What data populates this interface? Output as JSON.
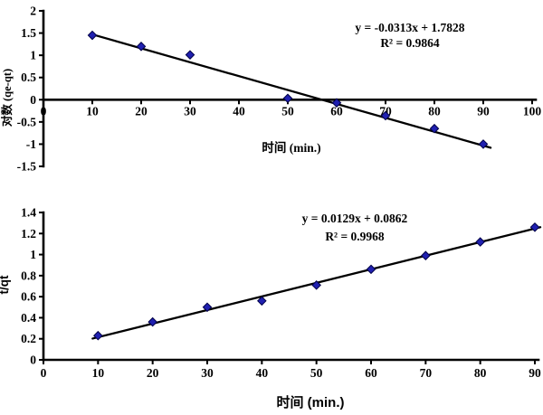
{
  "figure": {
    "background": "#ffffff",
    "description": "Adsorption kinetics linear regression plots"
  },
  "colors": {
    "marker_fill": "#2020b0",
    "marker_stroke": "#000046",
    "trendline": "#000000",
    "axis": "#000000",
    "text": "#000000"
  },
  "chart_data": [
    {
      "type": "scatter",
      "title": "",
      "xlabel": "时间 (min.)",
      "ylabel": "对数 (qe-qt)",
      "equation": "y = -0.0313x + 1.7828",
      "r_squared": "R² = 0.9864",
      "x": [
        10,
        20,
        30,
        50,
        60,
        70,
        80,
        90
      ],
      "y": [
        1.45,
        1.2,
        1.01,
        0.03,
        -0.07,
        -0.36,
        -0.65,
        -1.0
      ],
      "trendline": {
        "slope": -0.0313,
        "intercept": 1.7828,
        "x_start": 10,
        "x_end": 91.5
      },
      "xlim": [
        0,
        100
      ],
      "ylim": [
        -1.5,
        2
      ],
      "x_ticks": [
        0,
        10,
        20,
        30,
        40,
        50,
        60,
        70,
        80,
        90,
        100
      ],
      "y_ticks": [
        -1.5,
        -1,
        -0.5,
        0,
        0.5,
        1,
        1.5,
        2
      ],
      "grid": false,
      "legend": "none",
      "marker": "diamond"
    },
    {
      "type": "scatter",
      "title": "",
      "xlabel": "时间 (min.)",
      "ylabel": "t/qt",
      "equation": "y = 0.0129x + 0.0862",
      "r_squared": "R² = 0.9968",
      "x": [
        10,
        20,
        30,
        40,
        50,
        60,
        70,
        80,
        90
      ],
      "y": [
        0.23,
        0.36,
        0.5,
        0.56,
        0.71,
        0.86,
        0.99,
        1.12,
        1.26
      ],
      "trendline": {
        "slope": 0.0129,
        "intercept": 0.0862,
        "x_start": 9,
        "x_end": 91
      },
      "xlim": [
        0,
        90
      ],
      "ylim": [
        0,
        1.4
      ],
      "x_ticks": [
        0,
        10,
        20,
        30,
        40,
        50,
        60,
        70,
        80,
        90
      ],
      "y_ticks": [
        0,
        0.2,
        0.4,
        0.6,
        0.8,
        1,
        1.2,
        1.4
      ],
      "grid": false,
      "legend": "none",
      "marker": "diamond"
    }
  ]
}
